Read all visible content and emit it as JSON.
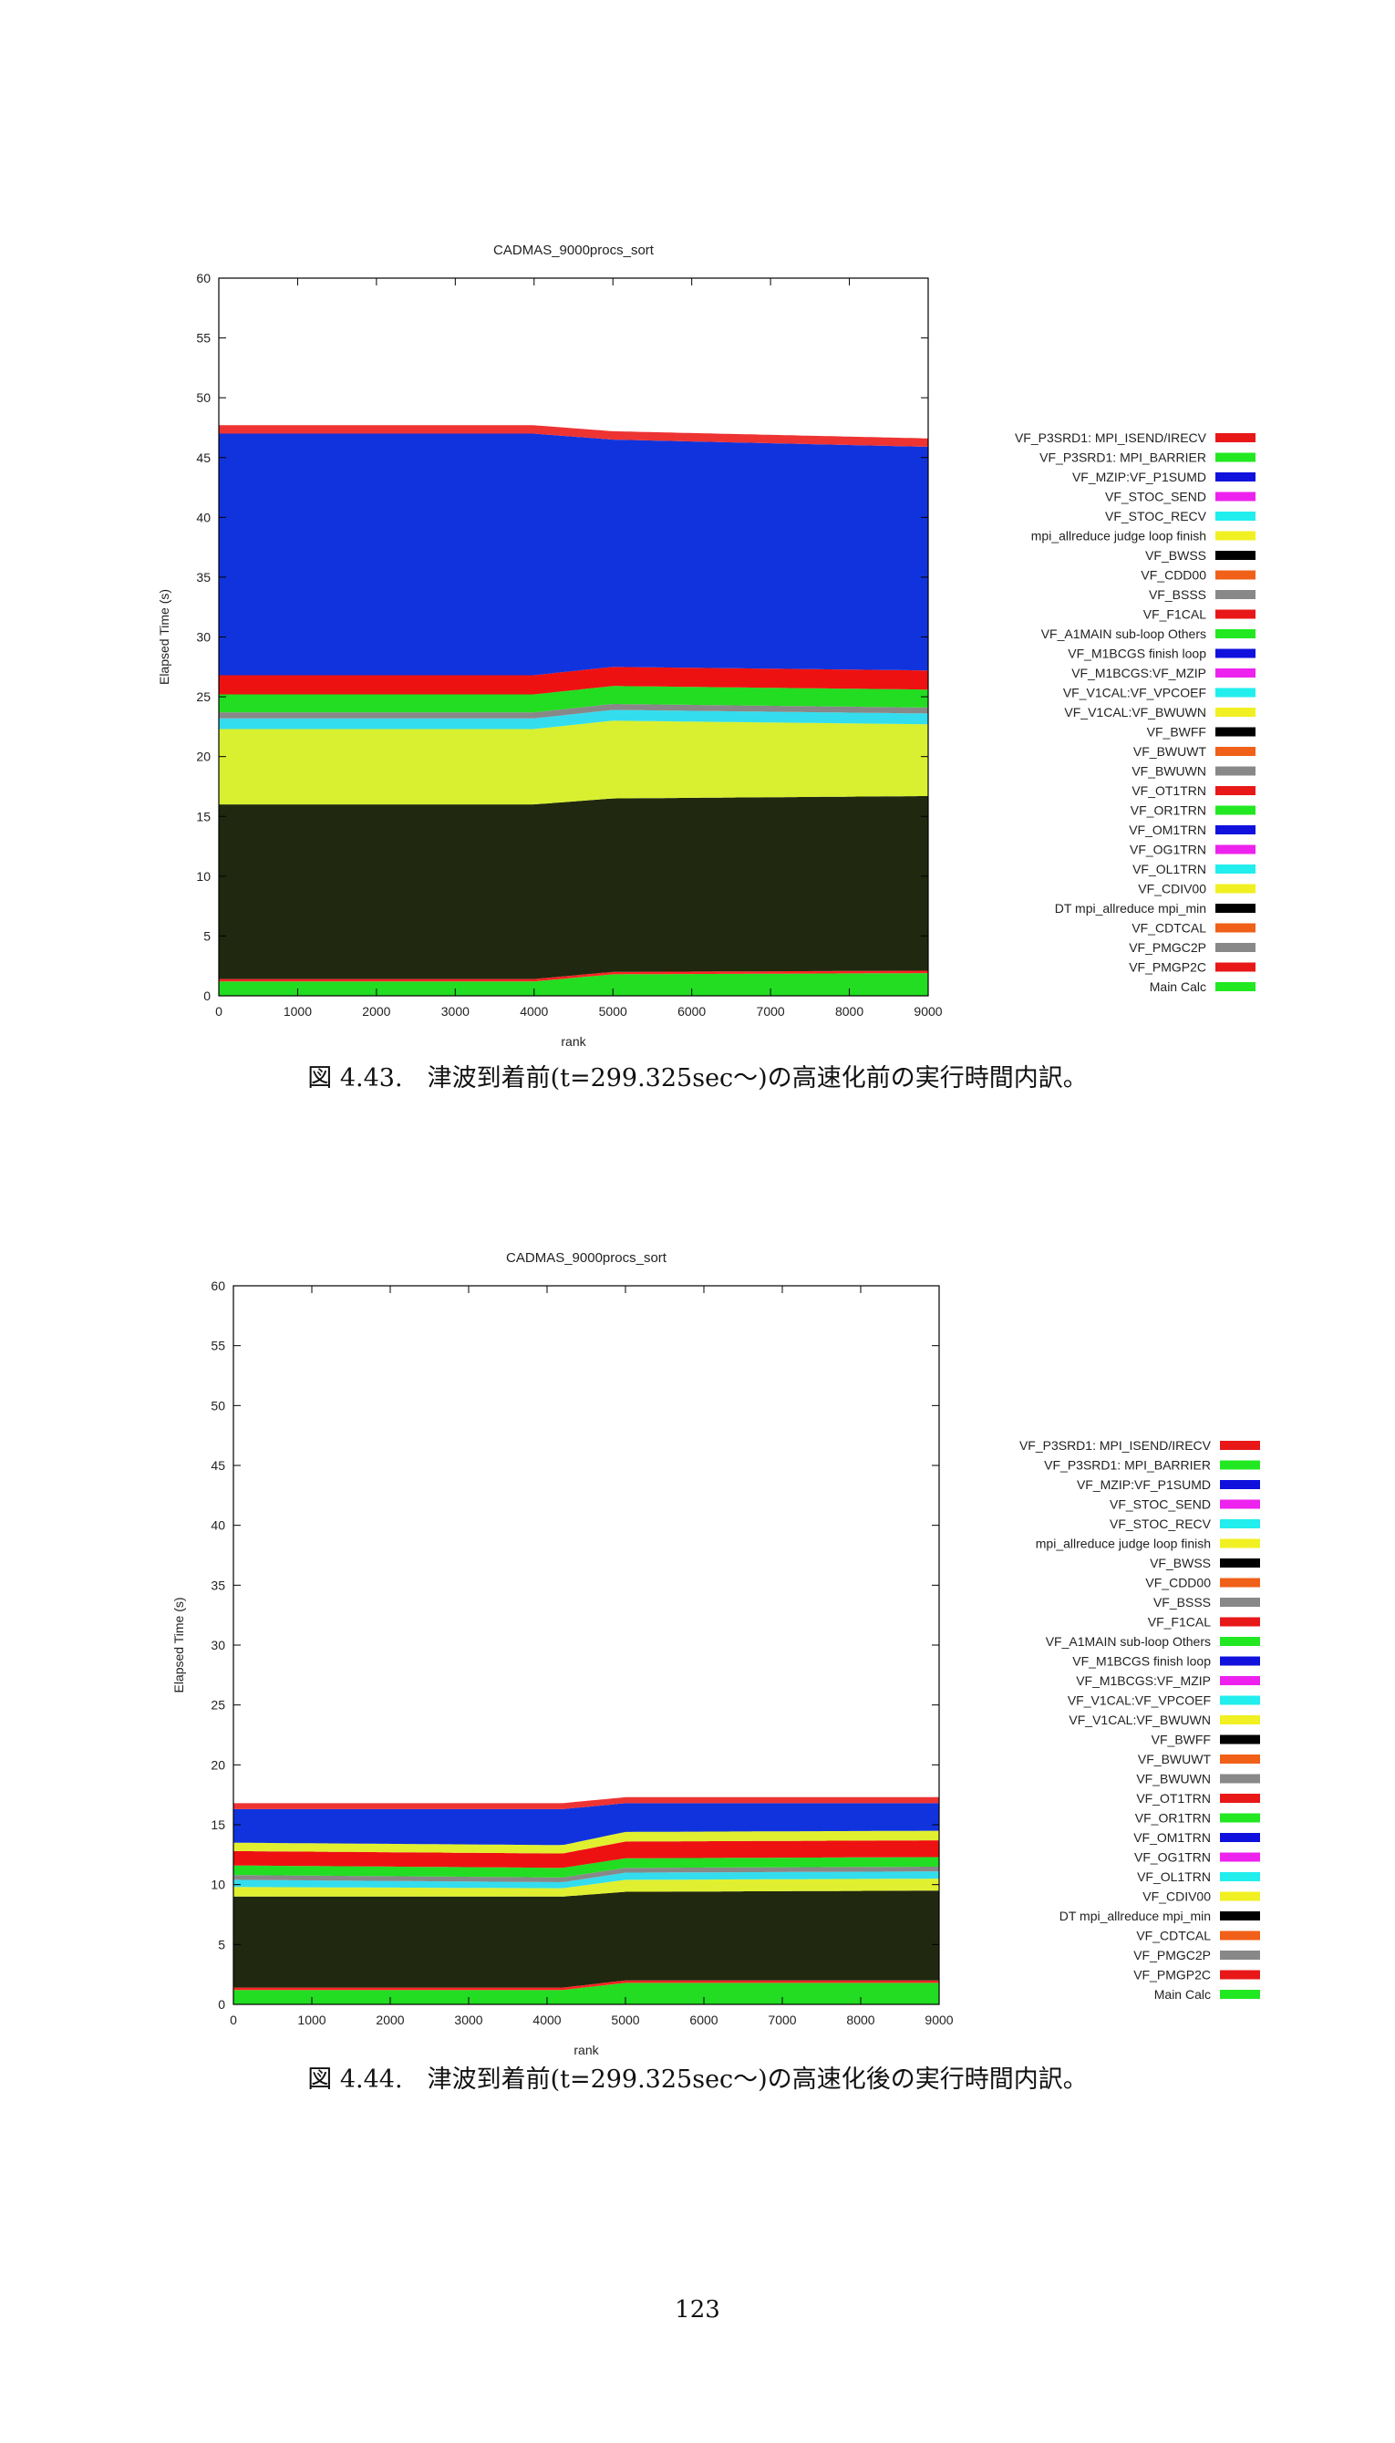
{
  "figures": [
    {
      "caption": "図 4.43.　津波到着前(t=299.325sec～)の高速化前の実行時間内訳。"
    },
    {
      "caption": "図 4.44.　津波到着前(t=299.325sec～)の高速化後の実行時間内訳。"
    }
  ],
  "page_number": "123",
  "chart_data": [
    {
      "type": "area",
      "stacked": true,
      "title": "CADMAS_9000procs_sort",
      "xlabel": "rank",
      "ylabel": "Elapsed Time (s)",
      "xlim": [
        0,
        9000
      ],
      "ylim": [
        0,
        60
      ],
      "xticks": [
        "0",
        "1000",
        "2000",
        "3000",
        "4000",
        "5000",
        "6000",
        "7000",
        "8000",
        "9000"
      ],
      "yticks": [
        "0",
        "5",
        "10",
        "15",
        "20",
        "25",
        "30",
        "35",
        "40",
        "45",
        "50",
        "55",
        "60"
      ],
      "grid": false,
      "legend_position": "right",
      "x": [
        0,
        4000,
        5000,
        9000
      ],
      "series": [
        {
          "name": "Main Calc",
          "color": "#22dd22",
          "values": [
            1.2,
            1.2,
            1.8,
            1.9
          ]
        },
        {
          "name": "VF_PMGP2C",
          "color": "#ff2222",
          "values": [
            0.2,
            0.2,
            0.2,
            0.2
          ]
        },
        {
          "name": "DT mpi_allreduce mpi_min",
          "color": "#202810",
          "values": [
            14.6,
            14.6,
            14.5,
            14.6
          ]
        },
        {
          "name": "VF_CDIV00",
          "color": "#d8f030",
          "values": [
            6.3,
            6.3,
            6.5,
            6.0
          ]
        },
        {
          "name": "VF_OL1TRN",
          "color": "#33ddee",
          "values": [
            0.9,
            0.9,
            0.9,
            0.9
          ]
        },
        {
          "name": "VF_BWUWN",
          "color": "#888888",
          "values": [
            0.5,
            0.5,
            0.5,
            0.5
          ]
        },
        {
          "name": "VF_OR1TRN",
          "color": "#22dd22",
          "values": [
            1.5,
            1.5,
            1.5,
            1.5
          ]
        },
        {
          "name": "VF_OT1TRN",
          "color": "#ee1111",
          "values": [
            1.6,
            1.6,
            1.6,
            1.6
          ]
        },
        {
          "name": "VF_MZIP:VF_P1SUMD",
          "color": "#1133dd",
          "values": [
            20.2,
            20.2,
            19.0,
            18.7
          ]
        },
        {
          "name": "VF_P3SRD1: MPI_ISEND/IRECV",
          "color": "#ee3333",
          "values": [
            0.7,
            0.7,
            0.7,
            0.7
          ]
        }
      ],
      "legend": [
        {
          "label": "VF_P3SRD1: MPI_ISEND/IRECV",
          "color": "#e81818"
        },
        {
          "label": "VF_P3SRD1: MPI_BARRIER",
          "color": "#22e822"
        },
        {
          "label": "VF_MZIP:VF_P1SUMD",
          "color": "#1111dd"
        },
        {
          "label": "VF_STOC_SEND",
          "color": "#ee22ee"
        },
        {
          "label": "VF_STOC_RECV",
          "color": "#22eeee"
        },
        {
          "label": "mpi_allreduce judge loop finish",
          "color": "#f0f022"
        },
        {
          "label": "VF_BWSS",
          "color": "#000000"
        },
        {
          "label": "VF_CDD00",
          "color": "#f06018"
        },
        {
          "label": "VF_BSSS",
          "color": "#888888"
        },
        {
          "label": "VF_F1CAL",
          "color": "#e81818"
        },
        {
          "label": "VF_A1MAIN sub-loop Others",
          "color": "#22e822"
        },
        {
          "label": "VF_M1BCGS finish loop",
          "color": "#1111dd"
        },
        {
          "label": "VF_M1BCGS:VF_MZIP",
          "color": "#ee22ee"
        },
        {
          "label": "VF_V1CAL:VF_VPCOEF",
          "color": "#22eeee"
        },
        {
          "label": "VF_V1CAL:VF_BWUWN",
          "color": "#f0f022"
        },
        {
          "label": "VF_BWFF",
          "color": "#000000"
        },
        {
          "label": "VF_BWUWT",
          "color": "#f06018"
        },
        {
          "label": "VF_BWUWN",
          "color": "#888888"
        },
        {
          "label": "VF_OT1TRN",
          "color": "#e81818"
        },
        {
          "label": "VF_OR1TRN",
          "color": "#22e822"
        },
        {
          "label": "VF_OM1TRN",
          "color": "#1111dd"
        },
        {
          "label": "VF_OG1TRN",
          "color": "#ee22ee"
        },
        {
          "label": "VF_OL1TRN",
          "color": "#22eeee"
        },
        {
          "label": "VF_CDIV00",
          "color": "#f0f022"
        },
        {
          "label": "DT mpi_allreduce mpi_min",
          "color": "#000000"
        },
        {
          "label": "VF_CDTCAL",
          "color": "#f06018"
        },
        {
          "label": "VF_PMGC2P",
          "color": "#888888"
        },
        {
          "label": "VF_PMGP2C",
          "color": "#e81818"
        },
        {
          "label": "Main Calc",
          "color": "#22e822"
        }
      ]
    },
    {
      "type": "area",
      "stacked": true,
      "title": "CADMAS_9000procs_sort",
      "xlabel": "rank",
      "ylabel": "Elapsed Time (s)",
      "xlim": [
        0,
        9000
      ],
      "ylim": [
        0,
        60
      ],
      "xticks": [
        "0",
        "1000",
        "2000",
        "3000",
        "4000",
        "5000",
        "6000",
        "7000",
        "8000",
        "9000"
      ],
      "yticks": [
        "0",
        "5",
        "10",
        "15",
        "20",
        "25",
        "30",
        "35",
        "40",
        "45",
        "50",
        "55",
        "60"
      ],
      "grid": false,
      "legend_position": "right",
      "x": [
        0,
        4200,
        5000,
        9000
      ],
      "series": [
        {
          "name": "Main Calc",
          "color": "#22dd22",
          "values": [
            1.2,
            1.2,
            1.8,
            1.8
          ]
        },
        {
          "name": "VF_PMGP2C",
          "color": "#ff2222",
          "values": [
            0.2,
            0.2,
            0.2,
            0.2
          ]
        },
        {
          "name": "DT mpi_allreduce mpi_min",
          "color": "#202810",
          "values": [
            7.6,
            7.6,
            7.4,
            7.5
          ]
        },
        {
          "name": "VF_CDIV00",
          "color": "#e0f030",
          "values": [
            0.8,
            0.7,
            1.0,
            1.0
          ]
        },
        {
          "name": "VF_OL1TRN",
          "color": "#33ddee",
          "values": [
            0.6,
            0.5,
            0.6,
            0.6
          ]
        },
        {
          "name": "VF_BWUWN",
          "color": "#888888",
          "values": [
            0.4,
            0.4,
            0.4,
            0.4
          ]
        },
        {
          "name": "VF_OR1TRN",
          "color": "#22dd22",
          "values": [
            0.8,
            0.8,
            0.8,
            0.8
          ]
        },
        {
          "name": "VF_OT1TRN",
          "color": "#ee1111",
          "values": [
            1.2,
            1.2,
            1.4,
            1.4
          ]
        },
        {
          "name": "VF_V1CAL:VF_BWUWN",
          "color": "#e0f030",
          "values": [
            0.7,
            0.7,
            0.8,
            0.8
          ]
        },
        {
          "name": "VF_M1BCGS finish loop",
          "color": "#1133dd",
          "values": [
            2.8,
            3.0,
            2.4,
            2.3
          ]
        },
        {
          "name": "VF_P3SRD1: MPI_ISEND/IRECV",
          "color": "#ee3333",
          "values": [
            0.5,
            0.5,
            0.5,
            0.5
          ]
        }
      ],
      "legend": [
        {
          "label": "VF_P3SRD1: MPI_ISEND/IRECV",
          "color": "#e81818"
        },
        {
          "label": "VF_P3SRD1: MPI_BARRIER",
          "color": "#22e822"
        },
        {
          "label": "VF_MZIP:VF_P1SUMD",
          "color": "#1111dd"
        },
        {
          "label": "VF_STOC_SEND",
          "color": "#ee22ee"
        },
        {
          "label": "VF_STOC_RECV",
          "color": "#22eeee"
        },
        {
          "label": "mpi_allreduce judge loop finish",
          "color": "#f0f022"
        },
        {
          "label": "VF_BWSS",
          "color": "#000000"
        },
        {
          "label": "VF_CDD00",
          "color": "#f06018"
        },
        {
          "label": "VF_BSSS",
          "color": "#888888"
        },
        {
          "label": "VF_F1CAL",
          "color": "#e81818"
        },
        {
          "label": "VF_A1MAIN sub-loop Others",
          "color": "#22e822"
        },
        {
          "label": "VF_M1BCGS finish loop",
          "color": "#1111dd"
        },
        {
          "label": "VF_M1BCGS:VF_MZIP",
          "color": "#ee22ee"
        },
        {
          "label": "VF_V1CAL:VF_VPCOEF",
          "color": "#22eeee"
        },
        {
          "label": "VF_V1CAL:VF_BWUWN",
          "color": "#f0f022"
        },
        {
          "label": "VF_BWFF",
          "color": "#000000"
        },
        {
          "label": "VF_BWUWT",
          "color": "#f06018"
        },
        {
          "label": "VF_BWUWN",
          "color": "#888888"
        },
        {
          "label": "VF_OT1TRN",
          "color": "#e81818"
        },
        {
          "label": "VF_OR1TRN",
          "color": "#22e822"
        },
        {
          "label": "VF_OM1TRN",
          "color": "#1111dd"
        },
        {
          "label": "VF_OG1TRN",
          "color": "#ee22ee"
        },
        {
          "label": "VF_OL1TRN",
          "color": "#22eeee"
        },
        {
          "label": "VF_CDIV00",
          "color": "#f0f022"
        },
        {
          "label": "DT mpi_allreduce mpi_min",
          "color": "#000000"
        },
        {
          "label": "VF_CDTCAL",
          "color": "#f06018"
        },
        {
          "label": "VF_PMGC2P",
          "color": "#888888"
        },
        {
          "label": "VF_PMGP2C",
          "color": "#e81818"
        },
        {
          "label": "Main Calc",
          "color": "#22e822"
        }
      ]
    }
  ]
}
